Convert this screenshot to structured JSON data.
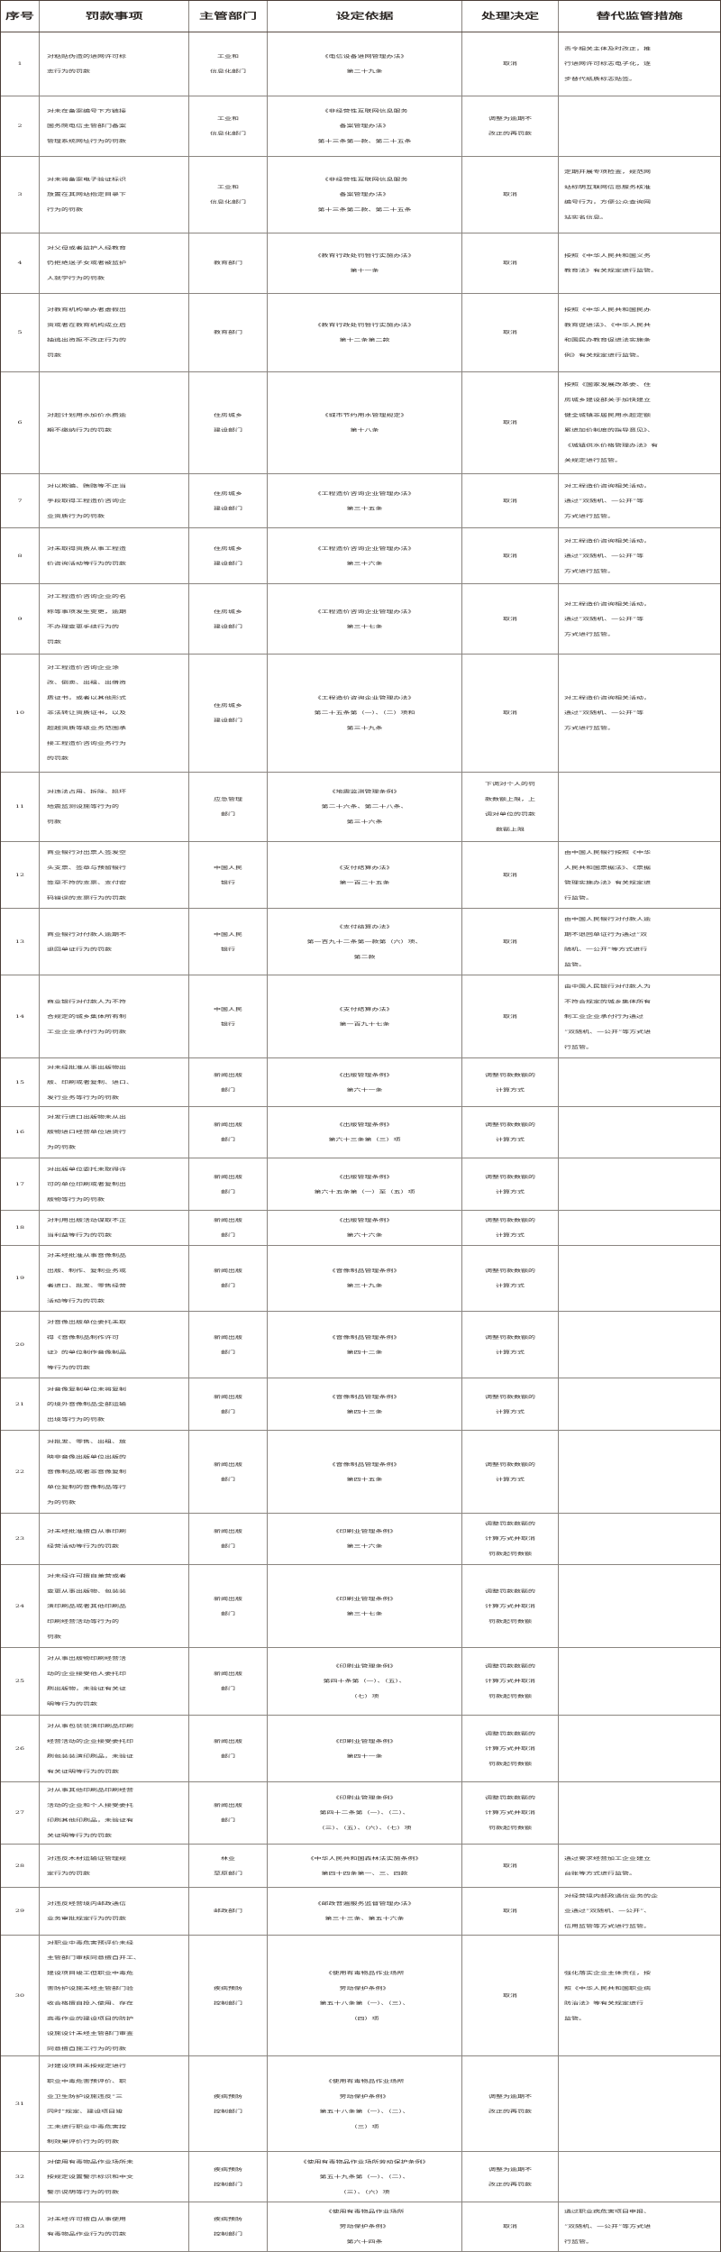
{
  "header": [
    "序号",
    "罚款事项",
    "主管部门",
    "设定依据",
    "处理决定",
    "替代监管措施"
  ],
  "rows": [
    {
      "no": "1",
      "item": "对粘贴伪造的进网许可标\n志行为的罚款",
      "dept": "工业和\n信息化部门",
      "basis": "《电信设备进网管理办法》\n第二十九条",
      "decision": "取消",
      "remedy": "责令相关主体及时改正，推\n行进网许可标志电子化，逐\n步替代纸质标志贴签。"
    },
    {
      "no": "2",
      "item": "对未在备案编号下方链接\n国务院电信主管部门备案\n管理系统网址行为的罚款",
      "dept": "工业和\n信息化部门",
      "basis": "《非经营性互联网信息服务\n备案管理办法》\n第十三条第一款、第二十五条",
      "decision": "调整为逾期不\n改正的再罚款",
      "remedy": ""
    },
    {
      "no": "3",
      "item": "对未将备案电子验证标识\n放置在其网站指定目录下\n行为的罚款",
      "dept": "工业和\n信息化部门",
      "basis": "《非经营性互联网信息服务\n备案管理办法》\n第十三条第二款、第二十五条",
      "decision": "取消",
      "remedy": "定期开展专项检查，规范网\n站标明互联网信息服务核准\n编号行为，方便公众查询网\n站实名信息。"
    },
    {
      "no": "4",
      "item": "对父母或者监护人经教育\n仍拒绝送子女或者被监护\n人就学行为的罚款",
      "dept": "教育部门",
      "basis": "《教育行政处罚暂行实施办法》\n第十一条",
      "decision": "取消",
      "remedy": "按照《中华人民共和国义务\n教育法》有关规定进行监管。"
    },
    {
      "no": "5",
      "item": "对教育机构举办者虚假出\n资或者在教育机构成立后\n抽逃出资拒不改正行为的\n罚款",
      "dept": "教育部门",
      "basis": "《教育行政处罚暂行实施办法》\n第十二条第二款",
      "decision": "取消",
      "remedy": "按照《中华人民共和国民办\n教育促进法》、《中华人民共\n和国民办教育促进法实施条\n例》有关规定进行监管。"
    },
    {
      "no": "6",
      "item": "对超计划用水加价水费逾\n期不缴纳行为的罚款",
      "dept": "住房城乡\n建设部门",
      "basis": "《城市节约用水管理规定》\n第十八条",
      "decision": "取消",
      "remedy": "按照《国家发展改革委、住\n房城乡建设部关于加快建立\n健全城镇非居民用水超定额\n累进加价制度的指导意见》、\n《城镇供水价格管理办法》有\n关规定进行监管。"
    },
    {
      "no": "7",
      "item": "对以欺骗、贿赂等不正当\n手段取得工程造价咨询企\n业资质行为的罚款",
      "dept": "住房城乡\n建设部门",
      "basis": "《工程造价咨询企业管理办法》\n第三十五条",
      "decision": "取消",
      "remedy": "对工程造价咨询相关活动，\n通过“双随机、一公开”等\n方式进行监管。"
    },
    {
      "no": "8",
      "item": "对未取得资质从事工程造\n价咨询活动等行为的罚款",
      "dept": "住房城乡\n建设部门",
      "basis": "《工程造价咨询企业管理办法》\n第三十六条",
      "decision": "取消",
      "remedy": "对工程造价咨询相关活动，\n通过“双随机、一公开”等\n方式进行监管。"
    },
    {
      "no": "9",
      "item": "对工程造价咨询企业的名\n称等事项发生变更，逾期\n不办理变更手续行为的\n罚款",
      "dept": "住房城乡\n建设部门",
      "basis": "《工程造价咨询企业管理办法》\n第三十七条",
      "decision": "取消",
      "remedy": "对工程造价咨询相关活动，\n通过“双随机、一公开”等\n方式进行监管。"
    },
    {
      "no": "10",
      "item": "对工程造价咨询企业涂\n改、倒卖、出租、出借资\n质证书，或者以其他形式\n非法转让资质证书，以及\n超越资质等级业务范围承\n接工程造价咨询业务行为\n的罚款",
      "dept": "住房城乡\n建设部门",
      "basis": "《工程造价咨询企业管理办法》\n第二十五条第（一）、（二）项和\n第三十九条",
      "decision": "取消",
      "remedy": "对工程造价咨询相关活动，\n通过“双随机、一公开”等\n方式进行监管。"
    },
    {
      "no": "11",
      "item": "对违法占用、拆除、损坏\n地震监测设施等行为的\n罚款",
      "dept": "应急管理\n部门",
      "basis": "《地震监测管理条例》\n第二十六条、第二十八条、\n第三十六条",
      "decision": "下调对个人的罚\n款数额上限，上\n调对单位的罚款\n数额上限",
      "remedy": ""
    },
    {
      "no": "12",
      "item": "商业银行对出票人签发空\n头支票、签章与预留银行\n签章不符的支票、支付密\n码错误的支票行为的罚款",
      "dept": "中国人民\n银行",
      "basis": "《支付结算办法》\n第一百二十五条",
      "decision": "取消",
      "remedy": "由中国人民银行按照《中华\n人民共和国票据法》、《票据\n管理实施办法》有关规定进\n行监管。"
    },
    {
      "no": "13",
      "item": "商业银行对付款人逾期不\n退回单证行为的罚款",
      "dept": "中国人民\n银行",
      "basis": "《支付结算办法》\n第一百九十二条第一款第（六）项、\n第二款",
      "decision": "取消",
      "remedy": "由中国人民银行对付款人逾\n期不退回单证行为通过“双\n随机、一公开”等方式进行\n监管。"
    },
    {
      "no": "14",
      "item": "商业银行对付款人为不符\n合规定的城乡集体所有制\n工业企业承付行为的罚款",
      "dept": "中国人民\n银行",
      "basis": "《支付结算办法》\n第一百九十七条",
      "decision": "取消",
      "remedy": "由中国人民银行对付款人为\n不符合规定的城乡集体所有\n制工业企业承付行为通过\n“双随机、一公开”等方式进\n行监管。"
    },
    {
      "no": "15",
      "item": "对未经批准从事出版物出\n版、印刷或者复制、进口、\n发行业务等行为的罚款",
      "dept": "新闻出版\n部门",
      "basis": "《出版管理条例》\n第六十一条",
      "decision": "调整罚款数额的\n计算方式",
      "remedy": ""
    },
    {
      "no": "16",
      "item": "对发行进口出版物未从出\n版物进口经营单位进货行\n为的罚款",
      "dept": "新闻出版\n部门",
      "basis": "《出版管理条例》\n第六十三条第（三）项",
      "decision": "调整罚款数额的\n计算方式",
      "remedy": ""
    },
    {
      "no": "17",
      "item": "对出版单位委托未取得许\n可的单位印刷或者复制出\n版物等行为的罚款",
      "dept": "新闻出版\n部门",
      "basis": "《出版管理条例》\n第六十五条第（一）至（五）项",
      "decision": "调整罚款数额的\n计算方式",
      "remedy": ""
    },
    {
      "no": "18",
      "item": "对利用出版活动谋取不正\n当利益等行为的罚款",
      "dept": "新闻出版\n部门",
      "basis": "《出版管理条例》\n第六十六条",
      "decision": "调整罚款数额的\n计算方式",
      "remedy": ""
    },
    {
      "no": "19",
      "item": "对未经批准从事音像制品\n出版、制作、复制业务或\n者进口、批发、零售经营\n活动等行为的罚款",
      "dept": "新闻出版\n部门",
      "basis": "《音像制品管理条例》\n第三十九条",
      "decision": "调整罚款数额的\n计算方式",
      "remedy": ""
    },
    {
      "no": "20",
      "item": "对音像出版单位委托未取\n得《音像制品制作许可\n证》的单位制作音像制品\n等行为的罚款",
      "dept": "新闻出版\n部门",
      "basis": "《音像制品管理条例》\n第四十二条",
      "decision": "调整罚款数额的\n计算方式",
      "remedy": ""
    },
    {
      "no": "21",
      "item": "对音像复制单位未将复制\n的境外音像制品全部运输\n出境等行为的罚款",
      "dept": "新闻出版\n部门",
      "basis": "《音像制品管理条例》\n第四十三条",
      "decision": "调整罚款数额的\n计算方式",
      "remedy": ""
    },
    {
      "no": "22",
      "item": "对批发、零售、出租、放\n映非音像出版单位出版的\n音像制品或者非音像复制\n单位复制的音像制品等行\n为的罚款",
      "dept": "新闻出版\n部门",
      "basis": "《音像制品管理条例》\n第四十五条",
      "decision": "调整罚款数额的\n计算方式",
      "remedy": ""
    },
    {
      "no": "23",
      "item": "对未经批准擅自从事印刷\n经营活动等行为的罚款",
      "dept": "新闻出版\n部门",
      "basis": "《印刷业管理条例》\n第三十六条",
      "decision": "调整罚款数额的\n计算方式并取消\n罚款起罚数额",
      "remedy": ""
    },
    {
      "no": "24",
      "item": "对未经许可擅自兼营或者\n变更从事出版物、包装装\n潢印刷品或者其他印刷品\n印刷经营活动等行为的\n罚款",
      "dept": "新闻出版\n部门",
      "basis": "《印刷业管理条例》\n第三十七条",
      "decision": "调整罚款数额的\n计算方式并取消\n罚款起罚数额",
      "remedy": ""
    },
    {
      "no": "25",
      "item": "对从事出版物印刷经营活\n动的企业接受他人委托印\n刷出版物，未验证有关证\n明等行为的罚款",
      "dept": "新闻出版\n部门",
      "basis": "《印刷业管理条例》\n第四十条第（一）、（五）、\n（七）项",
      "decision": "调整罚款数额的\n计算方式并取消\n罚款起罚数额",
      "remedy": ""
    },
    {
      "no": "26",
      "item": "对从事包装装潢印刷品印刷\n经营活动的企业接受委托印\n刷包装装潢印刷品，未验证\n有关证明等行为的罚款",
      "dept": "新闻出版\n部门",
      "basis": "《印刷业管理条例》\n第四十一条",
      "decision": "调整罚款数额的\n计算方式并取消\n罚款起罚数额",
      "remedy": ""
    },
    {
      "no": "27",
      "item": "对从事其他印刷品印刷经营\n活动的企业和个人接受委托\n印刷其他印刷品，未验证有\n关证明等行为的罚款",
      "dept": "新闻出版\n部门",
      "basis": "《印刷业管理条例》\n第四十二条第（一）、（二）、\n（三）、（五）、（六）、（七）项",
      "decision": "调整罚款数额的\n计算方式并取消\n罚款起罚数额",
      "remedy": ""
    },
    {
      "no": "28",
      "item": "对违反木材运输证管理规\n定行为的罚款",
      "dept": "林业\n草原部门",
      "basis": "《中华人民共和国森林法实施条例》\n第四十四条第一、三、四款",
      "decision": "取消",
      "remedy": "通过要求经营加工企业建立\n台账等方式进行监管。"
    },
    {
      "no": "29",
      "item": "对违反经营境内邮政通信\n业务审批规定行为的罚款",
      "dept": "邮政部门",
      "basis": "《邮政普遍服务监督管理办法》\n第三十三条、第五十六条",
      "decision": "取消",
      "remedy": "对经营境内邮政通信业务的企\n业通过“双随机、一公开”、\n信用监管等方式进行监管。"
    },
    {
      "no": "30",
      "item": "对职业中毒危害预评价未经\n主管部门审核同意擅自开工、\n建设项目竣工但职业中毒危\n害防护设施未经主管部门验\n收合格擅自投入使用、存在\n高毒作业的建设项目的防护\n设施设计未经主管部门审查\n同意擅自施工行为的罚款",
      "dept": "疾病预防\n控制部门",
      "basis": "《使用有毒物品作业场所\n劳动保护条例》\n第五十八条第（一）、（三）、\n（四）项",
      "decision": "取消",
      "remedy": "强化落实企业主体责任，按\n照《中华人民共和国职业病\n防治法》等有关规定进行\n监管。"
    },
    {
      "no": "31",
      "item": "对建设项目未按规定进行\n职业中毒危害预评价、职\n业卫生防护设施违反“三\n同时”规定、建设项目竣\n工未进行职业中毒危害控\n制效果评价行为的罚款",
      "dept": "疾病预防\n控制部门",
      "basis": "《使用有毒物品作业场所\n劳动保护条例》\n第五十八条第（一）、（二）、\n（三）项",
      "decision": "调整为逾期不\n改正的再罚款",
      "remedy": ""
    },
    {
      "no": "32",
      "item": "对使用有毒物品作业场所未\n按规定设置警示标识和中文\n警示说明等行为的罚款",
      "dept": "疾病预防\n控制部门",
      "basis": "《使用有毒物品作业场所劳动保护条例》\n第五十九条第（一）、（二）、\n（三）、（六）项",
      "decision": "调整为逾期不\n改正的再罚款",
      "remedy": ""
    },
    {
      "no": "33",
      "item": "对未经许可擅自从事使用\n有毒物品作业行为的罚款",
      "dept": "疾病预防\n控制部门",
      "basis": "《使用有毒物品作业场所\n劳动保护条例》\n第六十四条",
      "decision": "取消",
      "remedy": "通过职业病危害项目申报、\n“双随机、一公开”等方式进\n行监管。"
    }
  ]
}
